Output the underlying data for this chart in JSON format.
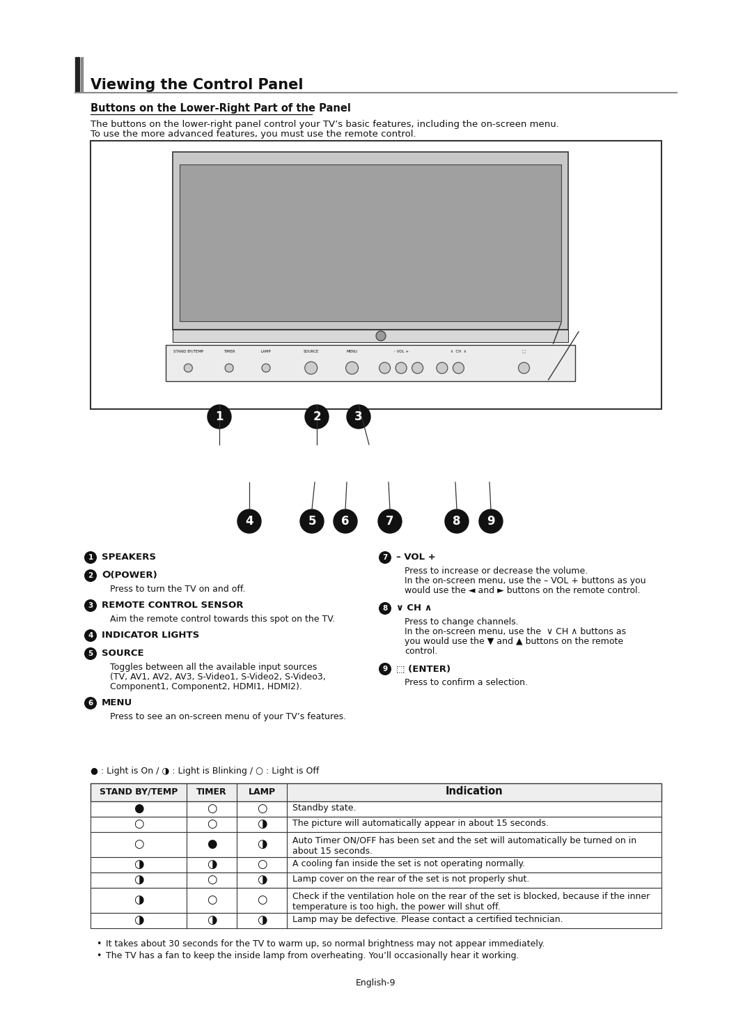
{
  "title": "Viewing the Control Panel",
  "subtitle": "Buttons on the Lower-Right Part of the Panel",
  "intro_line1": "The buttons on the lower-right panel control your TV’s basic features, including the on-screen menu.",
  "intro_line2": "To use the more advanced features, you must use the remote control.",
  "bg_color": "#ffffff",
  "legend": "● : Light is On / ◑ : Light is Blinking / ○ : Light is Off",
  "table_headers": [
    "STAND BY/TEMP",
    "TIMER",
    "LAMP",
    "Indication"
  ],
  "table_rows": [
    [
      "●",
      "○",
      "○",
      "Standby state."
    ],
    [
      "○",
      "○",
      "◑",
      "The picture will automatically appear in about 15 seconds."
    ],
    [
      "○",
      "●",
      "◑",
      "Auto Timer ON/OFF has been set and the set will automatically be turned on in\nabout 15 seconds."
    ],
    [
      "◑",
      "◑",
      "○",
      "A cooling fan inside the set is not operating normally."
    ],
    [
      "◑",
      "○",
      "◑",
      "Lamp cover on the rear of the set is not properly shut."
    ],
    [
      "◑",
      "○",
      "○",
      "Check if the ventilation hole on the rear of the set is blocked, because if the inner\ntemperature is too high, the power will shut off."
    ],
    [
      "◑",
      "◑",
      "◑",
      "Lamp may be defective. Please contact a certified technician."
    ]
  ],
  "bullets": [
    "It takes about 30 seconds for the TV to warm up, so normal brightness may not appear immediately.",
    "The TV has a fan to keep the inside lamp from overheating. You’ll occasionally hear it working."
  ],
  "footer": "English-9"
}
